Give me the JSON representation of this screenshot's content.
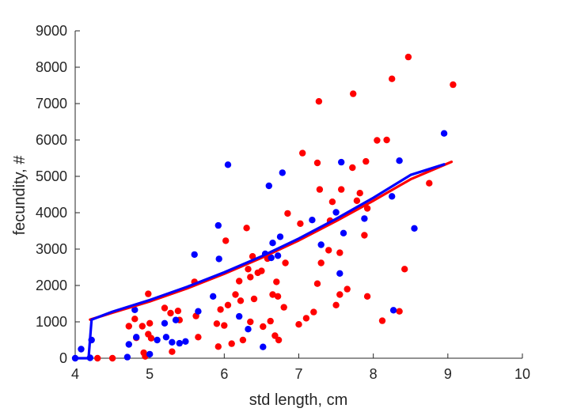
{
  "chart_data": {
    "type": "scatter",
    "xlabel": "std length, cm",
    "ylabel": "fecundity, #",
    "xlim": [
      4,
      10
    ],
    "ylim": [
      0,
      9000
    ],
    "xticks": [
      "4",
      "5",
      "6",
      "7",
      "8",
      "9",
      "10"
    ],
    "yticks": [
      "0",
      "1000",
      "2000",
      "3000",
      "4000",
      "5000",
      "6000",
      "7000",
      "8000",
      "9000"
    ],
    "grid": false,
    "series": [
      {
        "color": "#ff0000",
        "points": [
          [
            4.3,
            0
          ],
          [
            4.5,
            0
          ],
          [
            4.72,
            880
          ],
          [
            4.8,
            1080
          ],
          [
            4.82,
            560
          ],
          [
            4.9,
            880
          ],
          [
            4.92,
            150
          ],
          [
            4.94,
            50
          ],
          [
            4.98,
            660
          ],
          [
            4.98,
            1770
          ],
          [
            5.0,
            960
          ],
          [
            5.02,
            550
          ],
          [
            5.2,
            1380
          ],
          [
            5.28,
            1240
          ],
          [
            5.3,
            180
          ],
          [
            5.38,
            1300
          ],
          [
            5.4,
            1050
          ],
          [
            5.6,
            2100
          ],
          [
            5.62,
            1160
          ],
          [
            5.65,
            580
          ],
          [
            5.9,
            950
          ],
          [
            5.92,
            320
          ],
          [
            5.95,
            1340
          ],
          [
            6.0,
            900
          ],
          [
            6.02,
            3230
          ],
          [
            6.05,
            1460
          ],
          [
            6.1,
            400
          ],
          [
            6.15,
            1750
          ],
          [
            6.2,
            2120
          ],
          [
            6.22,
            1580
          ],
          [
            6.25,
            500
          ],
          [
            6.3,
            3580
          ],
          [
            6.32,
            2450
          ],
          [
            6.35,
            2230
          ],
          [
            6.35,
            1000
          ],
          [
            6.38,
            2800
          ],
          [
            6.4,
            1630
          ],
          [
            6.45,
            2350
          ],
          [
            6.5,
            2400
          ],
          [
            6.52,
            870
          ],
          [
            6.58,
            2740
          ],
          [
            6.62,
            1020
          ],
          [
            6.65,
            1750
          ],
          [
            6.68,
            620
          ],
          [
            6.7,
            2100
          ],
          [
            6.72,
            1700
          ],
          [
            6.73,
            500
          ],
          [
            6.8,
            1400
          ],
          [
            6.82,
            2620
          ],
          [
            6.85,
            3980
          ],
          [
            7.0,
            930
          ],
          [
            7.02,
            3700
          ],
          [
            7.05,
            5640
          ],
          [
            7.1,
            1100
          ],
          [
            7.2,
            1270
          ],
          [
            7.25,
            5370
          ],
          [
            7.25,
            2050
          ],
          [
            7.27,
            7060
          ],
          [
            7.28,
            4640
          ],
          [
            7.3,
            2620
          ],
          [
            7.4,
            2970
          ],
          [
            7.42,
            3780
          ],
          [
            7.45,
            4300
          ],
          [
            7.5,
            1460
          ],
          [
            7.55,
            1750
          ],
          [
            7.55,
            2900
          ],
          [
            7.57,
            4640
          ],
          [
            7.65,
            1900
          ],
          [
            7.72,
            5240
          ],
          [
            7.73,
            7270
          ],
          [
            7.78,
            4330
          ],
          [
            7.82,
            4540
          ],
          [
            7.88,
            3380
          ],
          [
            7.9,
            5410
          ],
          [
            7.92,
            4120
          ],
          [
            7.92,
            1700
          ],
          [
            8.05,
            5990
          ],
          [
            8.12,
            1030
          ],
          [
            8.18,
            6000
          ],
          [
            8.25,
            7680
          ],
          [
            8.35,
            1290
          ],
          [
            8.42,
            2450
          ],
          [
            8.47,
            8280
          ],
          [
            8.75,
            4810
          ],
          [
            9.07,
            7520
          ]
        ],
        "curve": [
          [
            4.2,
            1060
          ],
          [
            4.5,
            1250
          ],
          [
            5.0,
            1560
          ],
          [
            5.5,
            1920
          ],
          [
            6.0,
            2320
          ],
          [
            6.5,
            2760
          ],
          [
            7.0,
            3240
          ],
          [
            7.5,
            3770
          ],
          [
            8.0,
            4330
          ],
          [
            8.5,
            4920
          ],
          [
            9.05,
            5400
          ]
        ]
      },
      {
        "color": "#0000ff",
        "points": [
          [
            4.0,
            0
          ],
          [
            4.08,
            250
          ],
          [
            4.2,
            10
          ],
          [
            4.22,
            500
          ],
          [
            4.7,
            30
          ],
          [
            4.72,
            380
          ],
          [
            4.8,
            1330
          ],
          [
            4.82,
            580
          ],
          [
            5.0,
            110
          ],
          [
            5.1,
            500
          ],
          [
            5.2,
            960
          ],
          [
            5.22,
            580
          ],
          [
            5.3,
            440
          ],
          [
            5.35,
            1050
          ],
          [
            5.4,
            410
          ],
          [
            5.48,
            460
          ],
          [
            5.6,
            2850
          ],
          [
            5.65,
            1290
          ],
          [
            5.85,
            1700
          ],
          [
            5.92,
            3650
          ],
          [
            5.93,
            2730
          ],
          [
            6.05,
            5320
          ],
          [
            6.2,
            1150
          ],
          [
            6.32,
            800
          ],
          [
            6.52,
            310
          ],
          [
            6.55,
            2870
          ],
          [
            6.6,
            4740
          ],
          [
            6.63,
            2760
          ],
          [
            6.65,
            3170
          ],
          [
            6.72,
            2820
          ],
          [
            6.75,
            3340
          ],
          [
            6.78,
            5100
          ],
          [
            7.18,
            3800
          ],
          [
            7.3,
            3120
          ],
          [
            7.5,
            4010
          ],
          [
            7.55,
            2330
          ],
          [
            7.57,
            5390
          ],
          [
            7.6,
            3440
          ],
          [
            7.88,
            3840
          ],
          [
            8.25,
            4450
          ],
          [
            8.27,
            1320
          ],
          [
            8.35,
            5430
          ],
          [
            8.55,
            3570
          ],
          [
            8.95,
            6180
          ]
        ],
        "curve": [
          [
            4.0,
            0
          ],
          [
            4.18,
            0
          ],
          [
            4.22,
            1060
          ],
          [
            4.5,
            1280
          ],
          [
            5.0,
            1600
          ],
          [
            5.5,
            1960
          ],
          [
            6.0,
            2360
          ],
          [
            6.5,
            2800
          ],
          [
            7.0,
            3290
          ],
          [
            7.5,
            3830
          ],
          [
            8.0,
            4410
          ],
          [
            8.5,
            5040
          ],
          [
            8.95,
            5330
          ]
        ]
      }
    ]
  }
}
